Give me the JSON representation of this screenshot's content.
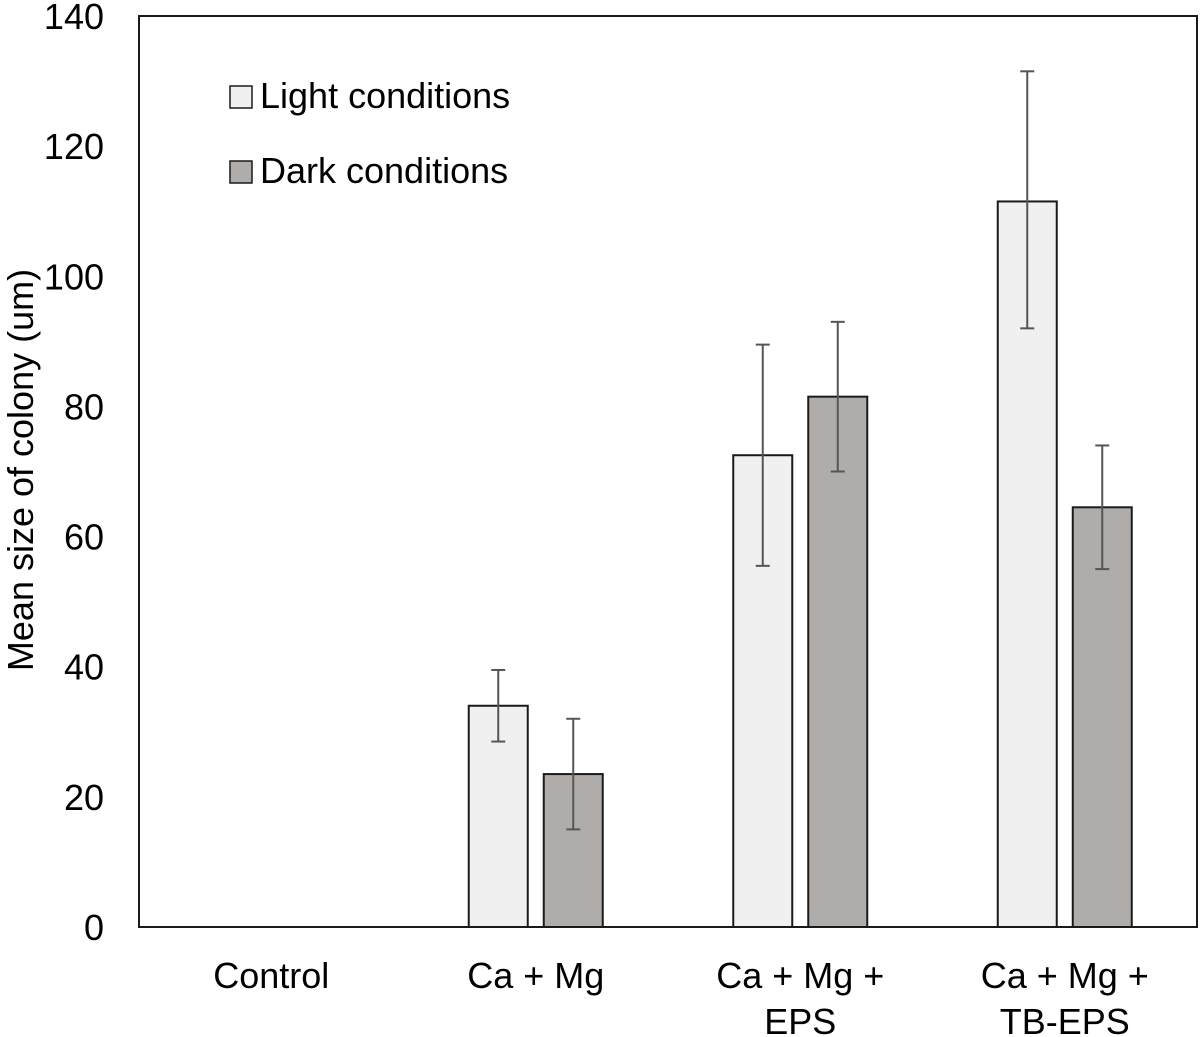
{
  "chart_data": {
    "type": "bar",
    "title": "",
    "xlabel": "",
    "ylabel": "Mean size of colony (um)",
    "ylim": [
      0,
      140
    ],
    "yticks": [
      0,
      20,
      40,
      60,
      80,
      100,
      120,
      140
    ],
    "grid": false,
    "legend_position": "top-left",
    "categories": [
      [
        "Control"
      ],
      [
        "Ca + Mg"
      ],
      [
        "Ca + Mg +",
        "EPS"
      ],
      [
        "Ca + Mg +",
        "TB-EPS"
      ]
    ],
    "series": [
      {
        "name": "Light conditions",
        "color": "#f0f0f0",
        "values": [
          0,
          34,
          72.5,
          111.5
        ],
        "error_low": [
          0,
          28.5,
          55.5,
          92
        ],
        "error_high": [
          0,
          39.5,
          89.5,
          131.5
        ]
      },
      {
        "name": "Dark conditions",
        "color": "#b0acaa",
        "values": [
          0,
          23.5,
          81.5,
          64.5
        ],
        "error_low": [
          0,
          15,
          70,
          55
        ],
        "error_high": [
          0,
          32,
          93,
          74
        ]
      }
    ]
  }
}
